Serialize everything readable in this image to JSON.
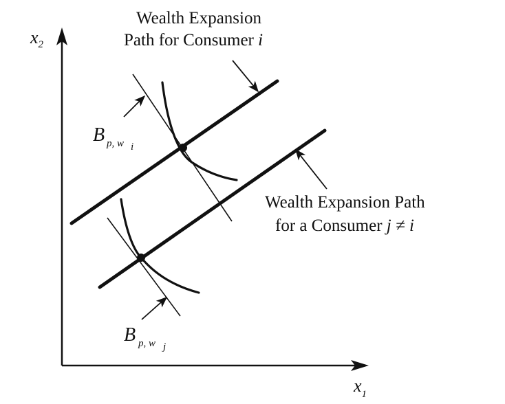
{
  "figure": {
    "axes": {
      "x_label_main": "x",
      "x_label_sub": "1",
      "y_label_main": "x",
      "y_label_sub": "2"
    },
    "paths": {
      "consumer_i": {
        "line1": "Wealth Expansion",
        "line2_text": "Path for Consumer ",
        "line2_italic": "i"
      },
      "consumer_j": {
        "line1": "Wealth Expansion Path",
        "line2_text": "for a Consumer ",
        "line2_italic": "j ≠ i"
      }
    },
    "budget_labels": {
      "upper": {
        "symbol": "B",
        "subscript": "p, w",
        "subsub": "i"
      },
      "lower": {
        "symbol": "B",
        "subscript": "p, w",
        "subsub": "j"
      }
    }
  }
}
